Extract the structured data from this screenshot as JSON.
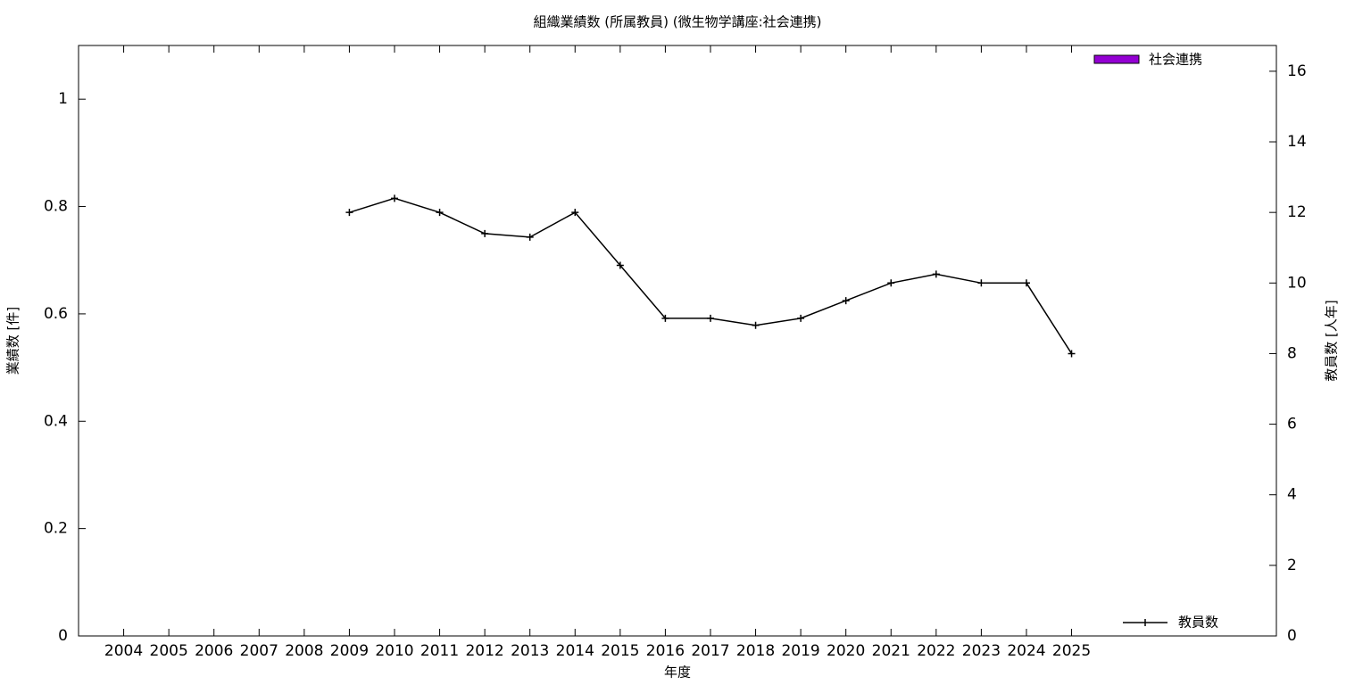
{
  "chart_data": {
    "type": "bar",
    "title": "組織業績数 (所属教員) (微生物学講座:社会連携)",
    "xlabel": "年度",
    "ylabel": "業績数 [件]",
    "y2label": "教員数 [人年]",
    "categories": [
      "2004",
      "2005",
      "2006",
      "2007",
      "2008",
      "2009",
      "2010",
      "2011",
      "2012",
      "2013",
      "2014",
      "2015",
      "2016",
      "2017",
      "2018",
      "2019",
      "2020",
      "2021",
      "2022",
      "2023",
      "2024",
      "2025"
    ],
    "series": [
      {
        "name": "社会連携",
        "type": "bar",
        "color": "#9400d3",
        "values": [
          0,
          0,
          0,
          0,
          0,
          0,
          0,
          0,
          0,
          0,
          0,
          0,
          0,
          0,
          0,
          0,
          0,
          0,
          0,
          0,
          0,
          0
        ]
      },
      {
        "name": "教員数",
        "type": "line",
        "axis": "y2",
        "color": "#000000",
        "values": [
          null,
          null,
          null,
          null,
          null,
          12,
          12.4,
          12,
          11.4,
          11.3,
          12,
          10.5,
          9,
          9,
          8.8,
          9,
          9.5,
          10,
          10.25,
          10,
          10,
          8
        ]
      }
    ],
    "ylim": [
      0,
      1.1
    ],
    "yticks": [
      0,
      0.2,
      0.4,
      0.6,
      0.8,
      1
    ],
    "y2lim": [
      0,
      16.73
    ],
    "y2ticks": [
      0,
      2,
      4,
      6,
      8,
      10,
      12,
      14,
      16
    ]
  }
}
